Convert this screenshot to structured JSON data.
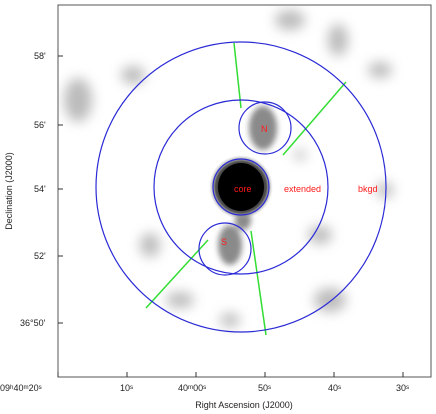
{
  "figure": {
    "xlabel": "Right Ascension (J2000)",
    "ylabel": "Declination (J2000)",
    "x_ticks": [
      "09ʰ40ᵐ20ˢ",
      "10ˢ",
      "40ᵐ00ˢ",
      "50ˢ",
      "40ˢ",
      "30ˢ"
    ],
    "y_ticks": [
      "58'",
      "56'",
      "54'",
      "52'",
      "36°50'"
    ],
    "regions": {
      "core": "core",
      "extended": "extended",
      "bkgd": "bkgd",
      "north": "N",
      "south": "S"
    },
    "colors": {
      "circle": "#2b2bd6",
      "boundary": "#33dd33",
      "label": "#ff1a1a"
    }
  }
}
